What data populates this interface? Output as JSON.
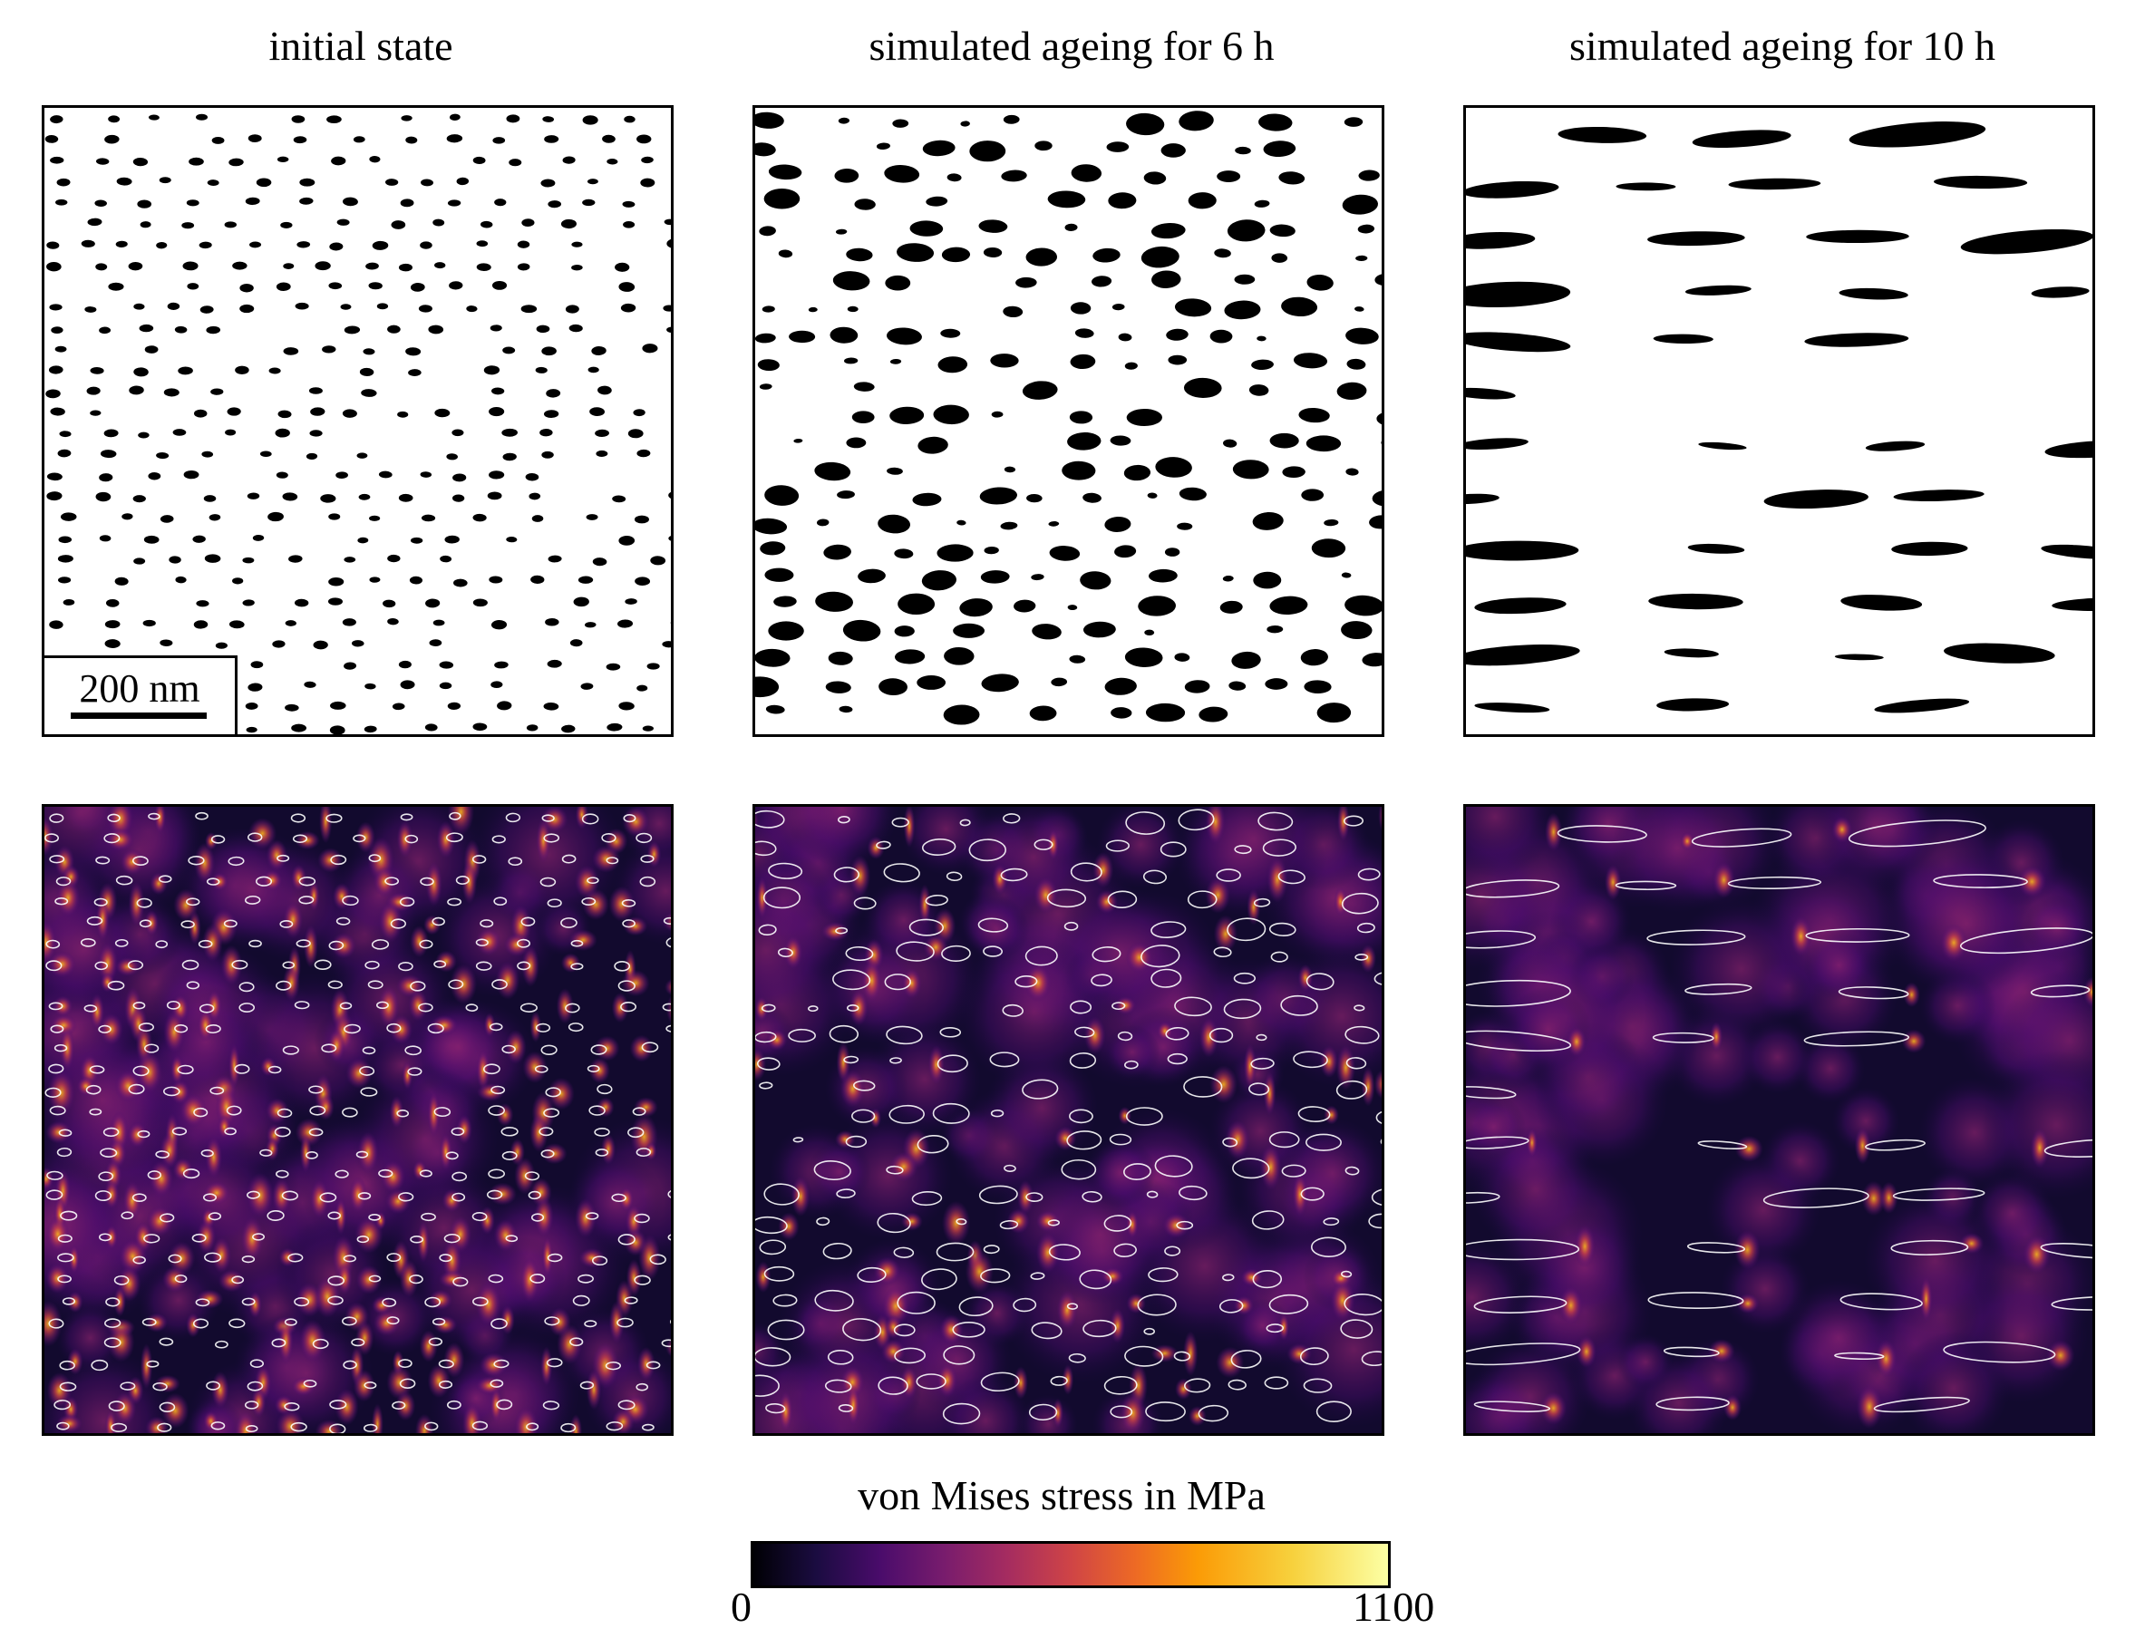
{
  "columns": [
    {
      "title": "initial state"
    },
    {
      "title": "simulated ageing for 6 h"
    },
    {
      "title": "simulated ageing for 10 h"
    }
  ],
  "scale_bar": {
    "label": "200 nm"
  },
  "colorbar": {
    "title": "von Mises stress in MPa",
    "min_label": "0",
    "max_label": "1100",
    "colormap": "inferno",
    "colors": [
      "#000004",
      "#4a0c6b",
      "#a52c60",
      "#ed6925",
      "#fcffa4"
    ]
  },
  "colors": {
    "particle": "#000000",
    "matrix": "#ffffff",
    "outline": "#ffffff",
    "border": "#000000"
  }
}
